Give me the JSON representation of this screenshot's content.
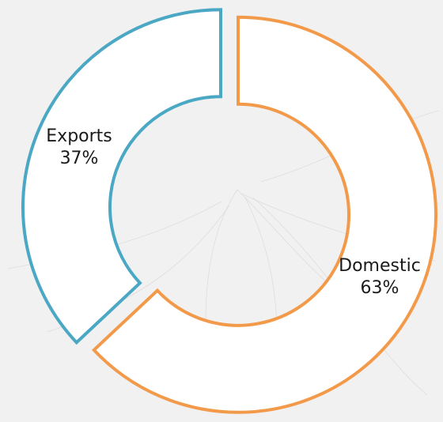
{
  "chart_data": {
    "type": "pie",
    "style": "donut-exploded",
    "title": "",
    "slices": [
      {
        "label": "Exports",
        "value": 37,
        "percent_label": "37%",
        "color": "#4aa8c4"
      },
      {
        "label": "Domestic",
        "value": 63,
        "percent_label": "63%",
        "color": "#f39a4a"
      }
    ]
  },
  "colors": {
    "background": "#f1f1f1",
    "slice_fill": "#ffffff",
    "label_text": "#1a1a1a"
  }
}
